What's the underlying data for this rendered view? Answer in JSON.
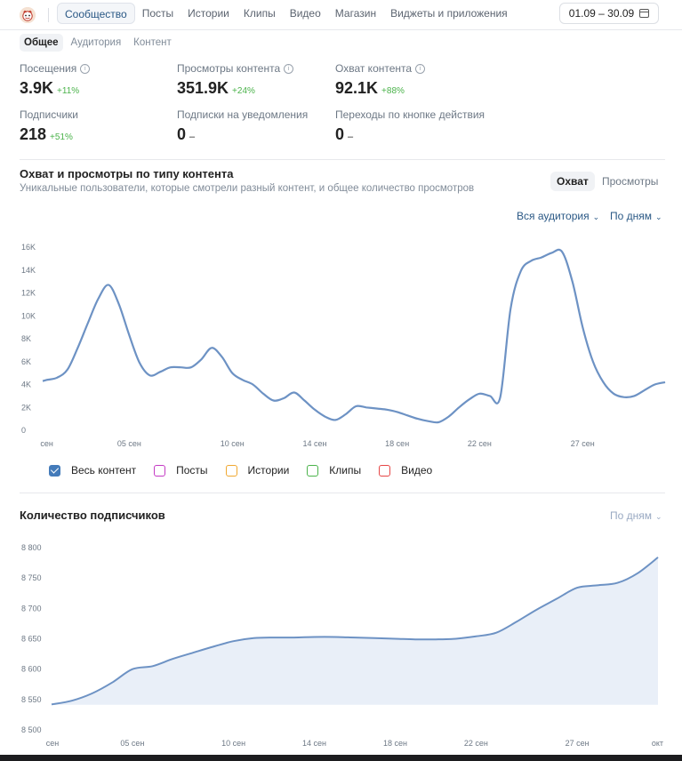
{
  "header": {
    "logo_icon": "avatar-icon",
    "tabs": [
      {
        "label": "Сообщество",
        "active": true
      },
      {
        "label": "Посты",
        "active": false
      },
      {
        "label": "Истории",
        "active": false
      },
      {
        "label": "Клипы",
        "active": false
      },
      {
        "label": "Видео",
        "active": false
      },
      {
        "label": "Магазин",
        "active": false
      },
      {
        "label": "Виджеты и приложения",
        "active": false
      }
    ],
    "date_range": "01.09 – 30.09"
  },
  "subtabs": [
    {
      "label": "Общее",
      "active": true
    },
    {
      "label": "Аудитория",
      "active": false
    },
    {
      "label": "Контент",
      "active": false
    }
  ],
  "metrics": [
    {
      "label": "Посещения",
      "value": "3.9K",
      "delta": "+11%",
      "info": true
    },
    {
      "label": "Просмотры контента",
      "value": "351.9K",
      "delta": "+24%",
      "info": true
    },
    {
      "label": "Охват контента",
      "value": "92.1K",
      "delta": "+88%",
      "info": true
    },
    {
      "label": "Подписчики",
      "value": "218",
      "delta": "+51%",
      "info": false
    },
    {
      "label": "Подписки на уведомления",
      "value": "0",
      "delta": "–",
      "info": false
    },
    {
      "label": "Переходы по кнопке действия",
      "value": "0",
      "delta": "–",
      "info": false
    }
  ],
  "reach_section": {
    "title": "Охват и просмотры по типу контента",
    "subtitle": "Уникальные пользователи, которые смотрели разный контент, и общее количество просмотров",
    "toggle": [
      {
        "label": "Охват",
        "active": true
      },
      {
        "label": "Просмотры",
        "active": false
      }
    ],
    "audience_dropdown": "Вся аудитория",
    "period_dropdown": "По дням",
    "legend": [
      {
        "label": "Весь контент",
        "color": "#447bba",
        "checked": true
      },
      {
        "label": "Посты",
        "color": "#c43ac4",
        "checked": false
      },
      {
        "label": "Истории",
        "color": "#f0a830",
        "checked": false
      },
      {
        "label": "Клипы",
        "color": "#4bb34b",
        "checked": false
      },
      {
        "label": "Видео",
        "color": "#e64646",
        "checked": false
      }
    ]
  },
  "subs_section": {
    "title": "Количество подписчиков",
    "period_dropdown": "По дням"
  },
  "chart_data": [
    {
      "type": "line",
      "title": "Охват и просмотры по типу контента",
      "ylim": [
        0,
        16000
      ],
      "yticks": [
        "0",
        "2K",
        "4K",
        "6K",
        "8K",
        "10K",
        "12K",
        "14K",
        "16K"
      ],
      "xtick_labels": [
        {
          "day": 1,
          "label": "сен"
        },
        {
          "day": 5,
          "label": "05 сен"
        },
        {
          "day": 10,
          "label": "10 сен"
        },
        {
          "day": 14,
          "label": "14 сен"
        },
        {
          "day": 18,
          "label": "18 сен"
        },
        {
          "day": 22,
          "label": "22 сен"
        },
        {
          "day": 27,
          "label": "27 сен"
        }
      ],
      "series": [
        {
          "name": "Весь контент",
          "color": "#6d92c4",
          "x": [
            0.8,
            1.0,
            1.5,
            2.0,
            2.5,
            3.0,
            3.5,
            4.0,
            4.5,
            5.0,
            5.5,
            6.0,
            6.5,
            7.0,
            7.5,
            8.0,
            8.5,
            9.0,
            9.5,
            10.0,
            10.5,
            11.0,
            11.5,
            12.0,
            12.5,
            13.0,
            13.5,
            14.0,
            14.5,
            15.0,
            15.5,
            16.0,
            16.5,
            17.0,
            17.5,
            18.0,
            18.5,
            19.0,
            19.5,
            20.0,
            20.5,
            21.0,
            21.5,
            22.0,
            22.5,
            23.0,
            23.5,
            24.0,
            24.5,
            25.0,
            25.5,
            26.0,
            26.5,
            27.0,
            27.5,
            28.0,
            28.5,
            29.0,
            29.5,
            30.0,
            30.5,
            31.0
          ],
          "y": [
            4300,
            4400,
            4600,
            5300,
            7200,
            9400,
            11500,
            12700,
            11000,
            8300,
            5900,
            4800,
            5100,
            5500,
            5500,
            5500,
            6200,
            7200,
            6400,
            5000,
            4400,
            4000,
            3200,
            2600,
            2800,
            3300,
            2600,
            1800,
            1200,
            900,
            1400,
            2100,
            2000,
            1900,
            1800,
            1600,
            1300,
            1000,
            800,
            700,
            1200,
            2000,
            2700,
            3200,
            3000,
            2900,
            10600,
            13900,
            14800,
            15100,
            15500,
            15600,
            13000,
            9000,
            6000,
            4200,
            3200,
            2900,
            3000,
            3500,
            4000,
            4200
          ]
        }
      ]
    },
    {
      "type": "area",
      "title": "Количество подписчиков",
      "ylim": [
        8500,
        8800
      ],
      "yticks": [
        "8 500",
        "8 550",
        "8 600",
        "8 650",
        "8 700",
        "8 750",
        "8 800"
      ],
      "xtick_labels": [
        {
          "day": 1,
          "label": "сен"
        },
        {
          "day": 5,
          "label": "05 сен"
        },
        {
          "day": 10,
          "label": "10 сен"
        },
        {
          "day": 14,
          "label": "14 сен"
        },
        {
          "day": 18,
          "label": "18 сен"
        },
        {
          "day": 22,
          "label": "22 сен"
        },
        {
          "day": 27,
          "label": "27 сен"
        },
        {
          "day": 31,
          "label": "окт"
        }
      ],
      "series": [
        {
          "name": "Подписчики",
          "color": "#6d92c4",
          "x": [
            1,
            2,
            3,
            4,
            5,
            6,
            7,
            8,
            9,
            10,
            11,
            12,
            13,
            14,
            15,
            16,
            17,
            18,
            19,
            20,
            21,
            22,
            23,
            24,
            25,
            26,
            27,
            28,
            29,
            30,
            31
          ],
          "y": [
            8542,
            8548,
            8560,
            8578,
            8600,
            8605,
            8617,
            8627,
            8637,
            8646,
            8651,
            8652,
            8652,
            8653,
            8653,
            8652,
            8651,
            8650,
            8649,
            8649,
            8650,
            8654,
            8660,
            8678,
            8698,
            8716,
            8734,
            8738,
            8742,
            8758,
            8784
          ]
        }
      ]
    }
  ]
}
